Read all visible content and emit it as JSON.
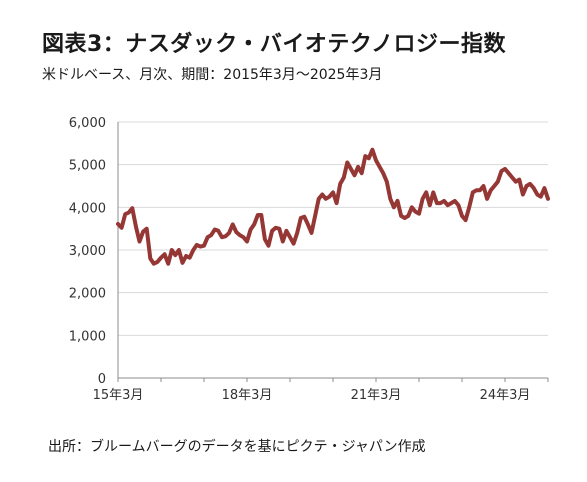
{
  "chart_data": {
    "type": "line",
    "title": "図表3：ナスダック・バイオテクノロジー指数",
    "subtitle": "米ドルベース、月次、期間：2015年3月～2025年3月",
    "source": "出所：ブルームバーグのデータを基にピクテ・ジャパン作成",
    "xlabel": "",
    "ylabel": "",
    "ylim": [
      0,
      6000
    ],
    "yticks": [
      {
        "value": 0,
        "label": "0"
      },
      {
        "value": 1000,
        "label": "1,000"
      },
      {
        "value": 2000,
        "label": "2,000"
      },
      {
        "value": 3000,
        "label": "3,000"
      },
      {
        "value": 4000,
        "label": "4,000"
      },
      {
        "value": 5000,
        "label": "5,000"
      },
      {
        "value": 6000,
        "label": "6,000"
      }
    ],
    "xticks": [
      {
        "value": 0,
        "label": "15年3月"
      },
      {
        "value": 36,
        "label": "18年3月"
      },
      {
        "value": 72,
        "label": "21年3月"
      },
      {
        "value": 108,
        "label": "24年3月"
      }
    ],
    "xlim": [
      0,
      120
    ],
    "grid": "horizontal",
    "line_color": "#953735",
    "series": [
      {
        "values": [
          3610,
          3520,
          3840,
          3880,
          3980,
          3550,
          3200,
          3430,
          3500,
          2800,
          2680,
          2720,
          2820,
          2900,
          2680,
          3000,
          2880,
          3000,
          2700,
          2860,
          2820,
          3000,
          3120,
          3080,
          3100,
          3300,
          3350,
          3480,
          3450,
          3300,
          3320,
          3400,
          3600,
          3420,
          3350,
          3300,
          3200,
          3480,
          3600,
          3820,
          3820,
          3250,
          3100,
          3450,
          3520,
          3500,
          3200,
          3450,
          3300,
          3150,
          3400,
          3750,
          3780,
          3600,
          3400,
          3800,
          4200,
          4300,
          4200,
          4250,
          4350,
          4100,
          4550,
          4700,
          5050,
          4900,
          4750,
          4950,
          4800,
          5200,
          5150,
          5350,
          5100,
          4950,
          4800,
          4600,
          4200,
          4000,
          4150,
          3800,
          3750,
          3800,
          4000,
          3900,
          3850,
          4200,
          4350,
          4050,
          4350,
          4100,
          4100,
          4150,
          4050,
          4100,
          4150,
          4050,
          3800,
          3700,
          4000,
          4350,
          4400,
          4400,
          4500,
          4200,
          4400,
          4500,
          4600,
          4850,
          4900,
          4800,
          4700,
          4600,
          4650,
          4300,
          4500,
          4550,
          4450,
          4300,
          4250,
          4450,
          4200
        ]
      }
    ]
  }
}
